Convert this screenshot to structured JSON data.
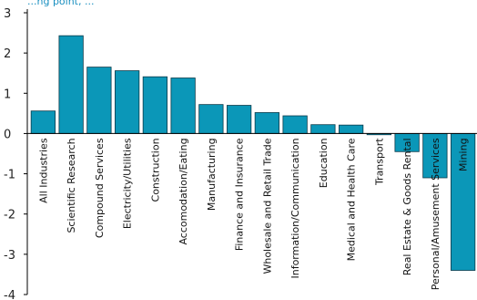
{
  "chart_data": {
    "type": "bar",
    "title": "",
    "title_fragment": "...ng point, ...",
    "xlabel": "",
    "ylabel": "",
    "ylim": [
      -4,
      3
    ],
    "yticks": [
      3,
      2,
      1,
      0,
      -1,
      -2,
      -3,
      -4
    ],
    "grid": false,
    "legend": "none",
    "colors": {
      "bar": "#0b97b8",
      "bar_stroke": "#0a3a4a",
      "axis": "#000000",
      "title": "#1a8fc0"
    },
    "categories": [
      "All Industries",
      "Scientific Research",
      "Compound Services",
      "Electricity/Utilities",
      "Construction",
      "Accomodation/Eating",
      "Manufacturing",
      "Finance and Insurance",
      "Wholesale and Retail Trade",
      "Information/Communication",
      "Education",
      "Medical and Health Care",
      "Transport",
      "Real Estate & Goods Rental",
      "Personal/Amusement Services",
      "Mining"
    ],
    "values": [
      0.56,
      2.43,
      1.65,
      1.56,
      1.41,
      1.38,
      0.72,
      0.7,
      0.52,
      0.44,
      0.22,
      0.21,
      -0.03,
      -0.45,
      -1.1,
      -3.4
    ]
  }
}
